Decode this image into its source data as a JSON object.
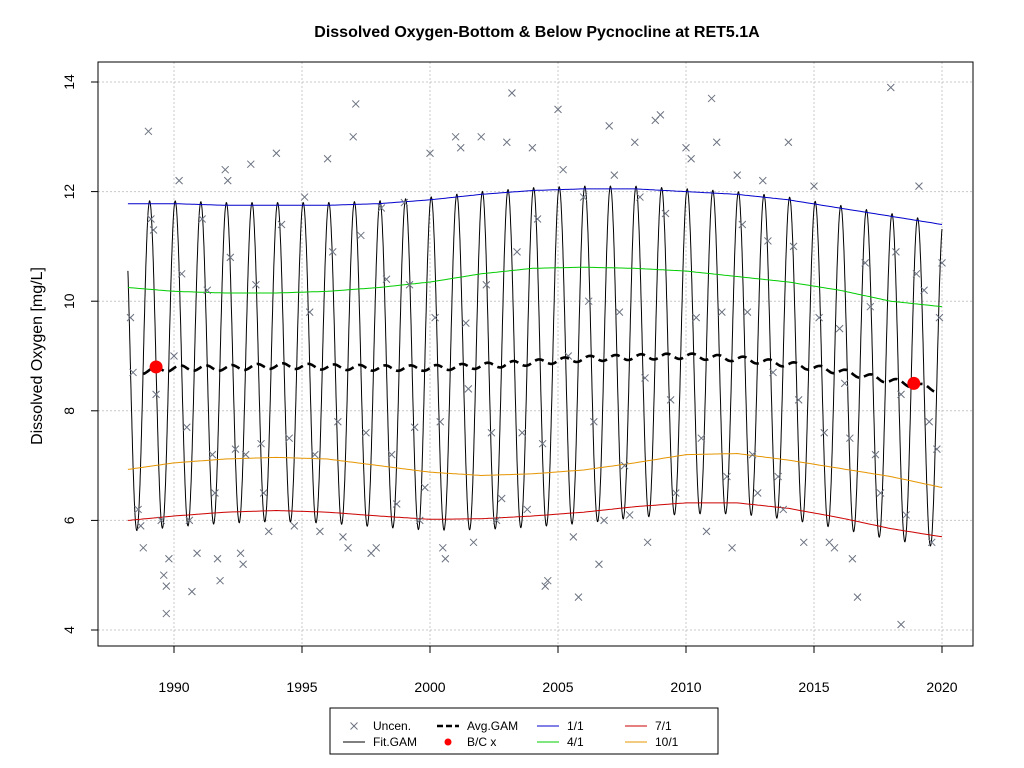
{
  "chart_data": {
    "type": "line",
    "title": "Dissolved Oxygen-Bottom & Below Pycnocline at RET5.1A",
    "xlabel": "",
    "ylabel": "Dissolved Oxygen [mg/L]",
    "xlim": [
      1988.2,
      2020.0
    ],
    "ylim": [
      4,
      14
    ],
    "x_ticks": [
      1990,
      1995,
      2000,
      2005,
      2010,
      2015,
      2020
    ],
    "x_tick_labels": [
      "1990",
      "1995",
      "2000",
      "2005",
      "2010",
      "2015",
      "2020"
    ],
    "y_ticks": [
      4,
      6,
      8,
      10,
      12,
      14
    ],
    "y_tick_labels": [
      "4",
      "6",
      "8",
      "10",
      "12",
      "14"
    ],
    "grid": true,
    "legend_position": "bottom-center",
    "legend": [
      {
        "label": "Uncen.",
        "symbol": "x",
        "color": "#6b7280"
      },
      {
        "label": "Avg.GAM",
        "symbol": "dashed-line",
        "color": "#000000"
      },
      {
        "label": "1/1",
        "symbol": "line",
        "color": "#0000cc"
      },
      {
        "label": "7/1",
        "symbol": "line",
        "color": "#cc0000"
      },
      {
        "label": "Fit.GAM",
        "symbol": "line",
        "color": "#000000"
      },
      {
        "label": "B/C x",
        "symbol": "dot",
        "color": "#ff0000"
      },
      {
        "label": "4/1",
        "symbol": "line",
        "color": "#00cc00"
      },
      {
        "label": "10/1",
        "symbol": "line",
        "color": "#e69500"
      }
    ],
    "series": [
      {
        "name": "1/1",
        "color": "#0000cc",
        "x": [
          1988.2,
          1990,
          1992,
          1994,
          1996,
          1998,
          2000,
          2002,
          2004,
          2006,
          2008,
          2010,
          2012,
          2014,
          2016,
          2018,
          2020
        ],
        "values": [
          11.78,
          11.78,
          11.75,
          11.75,
          11.75,
          11.78,
          11.85,
          11.95,
          12.02,
          12.05,
          12.05,
          12.0,
          11.95,
          11.85,
          11.7,
          11.55,
          11.4
        ]
      },
      {
        "name": "4/1",
        "color": "#00cc00",
        "x": [
          1988.2,
          1990,
          1992,
          1994,
          1996,
          1998,
          2000,
          2002,
          2004,
          2006,
          2008,
          2010,
          2012,
          2014,
          2016,
          2018,
          2020
        ],
        "values": [
          10.25,
          10.18,
          10.15,
          10.15,
          10.18,
          10.25,
          10.35,
          10.5,
          10.6,
          10.62,
          10.6,
          10.55,
          10.45,
          10.35,
          10.2,
          10.0,
          9.9
        ]
      },
      {
        "name": "10/1",
        "color": "#e69500",
        "x": [
          1988.2,
          1990,
          1992,
          1994,
          1996,
          1998,
          2000,
          2002,
          2004,
          2006,
          2008,
          2010,
          2012,
          2014,
          2016,
          2018,
          2020
        ],
        "values": [
          6.93,
          7.05,
          7.12,
          7.15,
          7.12,
          7.0,
          6.88,
          6.82,
          6.85,
          6.92,
          7.05,
          7.2,
          7.22,
          7.1,
          6.95,
          6.8,
          6.6
        ]
      },
      {
        "name": "7/1",
        "color": "#cc0000",
        "x": [
          1988.2,
          1990,
          1992,
          1994,
          1996,
          1998,
          2000,
          2002,
          2004,
          2006,
          2008,
          2010,
          2012,
          2014,
          2016,
          2018,
          2020
        ],
        "values": [
          6.0,
          6.08,
          6.15,
          6.18,
          6.15,
          6.08,
          6.02,
          6.03,
          6.08,
          6.15,
          6.25,
          6.32,
          6.32,
          6.22,
          6.05,
          5.85,
          5.7
        ]
      },
      {
        "name": "Avg.GAM",
        "color": "#000000",
        "x": [
          1988.8,
          1990,
          1992,
          1994,
          1996,
          1998,
          2000,
          2002,
          2004,
          2006,
          2008,
          2010,
          2012,
          2014,
          2016,
          2018,
          2019.7
        ],
        "values": [
          8.72,
          8.78,
          8.78,
          8.82,
          8.8,
          8.78,
          8.78,
          8.82,
          8.88,
          8.95,
          8.98,
          9.0,
          8.95,
          8.85,
          8.72,
          8.55,
          8.4
        ]
      },
      {
        "name": "Fit.GAM",
        "color": "#000000",
        "x_range": [
          1988.2,
          2020.0
        ],
        "amplitude_ref": "upper 1/1, lower 7/1",
        "period_years": 1
      }
    ],
    "bc_points": [
      {
        "x": 1989.3,
        "y": 8.8
      },
      {
        "x": 2018.9,
        "y": 8.5
      }
    ],
    "observations": [
      [
        1988.3,
        9.7
      ],
      [
        1988.4,
        8.7
      ],
      [
        1988.6,
        6.2
      ],
      [
        1988.7,
        5.9
      ],
      [
        1988.8,
        5.5
      ],
      [
        1989.0,
        13.1
      ],
      [
        1989.1,
        11.5
      ],
      [
        1989.2,
        11.3
      ],
      [
        1989.3,
        8.3
      ],
      [
        1989.5,
        6.0
      ],
      [
        1989.6,
        5.0
      ],
      [
        1989.7,
        4.8
      ],
      [
        1989.8,
        5.3
      ],
      [
        1989.7,
        4.3
      ],
      [
        1990.0,
        9.0
      ],
      [
        1990.2,
        12.2
      ],
      [
        1990.3,
        10.5
      ],
      [
        1990.5,
        7.7
      ],
      [
        1990.6,
        6.0
      ],
      [
        1990.7,
        4.7
      ],
      [
        1990.9,
        5.4
      ],
      [
        1991.1,
        11.5
      ],
      [
        1991.3,
        10.2
      ],
      [
        1991.5,
        7.2
      ],
      [
        1991.6,
        6.5
      ],
      [
        1991.7,
        5.3
      ],
      [
        1991.8,
        4.9
      ],
      [
        1992.0,
        12.4
      ],
      [
        1992.1,
        12.2
      ],
      [
        1992.2,
        10.8
      ],
      [
        1992.4,
        7.3
      ],
      [
        1992.6,
        5.4
      ],
      [
        1992.7,
        5.2
      ],
      [
        1992.8,
        7.2
      ],
      [
        1993.0,
        12.5
      ],
      [
        1993.2,
        10.3
      ],
      [
        1993.4,
        7.4
      ],
      [
        1993.5,
        6.5
      ],
      [
        1993.7,
        5.8
      ],
      [
        1994.0,
        12.7
      ],
      [
        1994.2,
        11.4
      ],
      [
        1994.5,
        7.5
      ],
      [
        1994.7,
        5.9
      ],
      [
        1995.1,
        11.9
      ],
      [
        1995.3,
        9.8
      ],
      [
        1995.5,
        7.2
      ],
      [
        1995.7,
        5.8
      ],
      [
        1996.0,
        12.6
      ],
      [
        1996.2,
        10.9
      ],
      [
        1996.4,
        7.8
      ],
      [
        1996.6,
        5.7
      ],
      [
        1996.8,
        5.5
      ],
      [
        1997.0,
        13.0
      ],
      [
        1997.1,
        13.6
      ],
      [
        1997.3,
        11.2
      ],
      [
        1997.5,
        7.6
      ],
      [
        1997.7,
        5.4
      ],
      [
        1997.9,
        5.5
      ],
      [
        1998.1,
        11.7
      ],
      [
        1998.3,
        10.4
      ],
      [
        1998.5,
        7.2
      ],
      [
        1998.7,
        6.3
      ],
      [
        1999.0,
        11.8
      ],
      [
        1999.2,
        10.3
      ],
      [
        1999.4,
        7.7
      ],
      [
        1999.6,
        6.0
      ],
      [
        1999.8,
        6.6
      ],
      [
        2000.0,
        12.7
      ],
      [
        2000.2,
        9.7
      ],
      [
        2000.4,
        7.8
      ],
      [
        2000.5,
        5.5
      ],
      [
        2000.6,
        5.3
      ],
      [
        2001.0,
        13.0
      ],
      [
        2001.2,
        12.8
      ],
      [
        2001.4,
        9.6
      ],
      [
        2001.5,
        8.4
      ],
      [
        2001.7,
        5.6
      ],
      [
        2002.0,
        13.0
      ],
      [
        2002.2,
        10.3
      ],
      [
        2002.4,
        7.6
      ],
      [
        2002.6,
        6.0
      ],
      [
        2002.8,
        6.4
      ],
      [
        2003.0,
        12.9
      ],
      [
        2003.2,
        13.8
      ],
      [
        2003.4,
        10.9
      ],
      [
        2003.6,
        7.6
      ],
      [
        2003.8,
        6.2
      ],
      [
        2004.0,
        12.8
      ],
      [
        2004.2,
        11.5
      ],
      [
        2004.4,
        7.4
      ],
      [
        2004.5,
        4.8
      ],
      [
        2004.6,
        4.9
      ],
      [
        2005.0,
        13.5
      ],
      [
        2005.2,
        12.4
      ],
      [
        2005.4,
        9.0
      ],
      [
        2005.6,
        5.7
      ],
      [
        2005.8,
        4.6
      ],
      [
        2006.0,
        11.9
      ],
      [
        2006.2,
        10.0
      ],
      [
        2006.4,
        7.8
      ],
      [
        2006.6,
        5.2
      ],
      [
        2006.8,
        6.0
      ],
      [
        2007.0,
        13.2
      ],
      [
        2007.2,
        12.3
      ],
      [
        2007.4,
        9.8
      ],
      [
        2007.6,
        7.0
      ],
      [
        2007.8,
        6.1
      ],
      [
        2008.0,
        12.9
      ],
      [
        2008.2,
        11.9
      ],
      [
        2008.4,
        8.6
      ],
      [
        2008.5,
        5.6
      ],
      [
        2008.8,
        13.3
      ],
      [
        2009.0,
        13.4
      ],
      [
        2009.2,
        11.6
      ],
      [
        2009.4,
        8.2
      ],
      [
        2009.6,
        6.5
      ],
      [
        2010.0,
        12.8
      ],
      [
        2010.2,
        12.6
      ],
      [
        2010.4,
        9.7
      ],
      [
        2010.6,
        7.5
      ],
      [
        2010.8,
        5.8
      ],
      [
        2011.0,
        13.7
      ],
      [
        2011.2,
        12.9
      ],
      [
        2011.4,
        9.8
      ],
      [
        2011.6,
        6.8
      ],
      [
        2011.8,
        5.5
      ],
      [
        2012.0,
        12.3
      ],
      [
        2012.2,
        11.4
      ],
      [
        2012.4,
        9.8
      ],
      [
        2012.6,
        7.2
      ],
      [
        2012.8,
        6.5
      ],
      [
        2013.0,
        12.2
      ],
      [
        2013.2,
        11.1
      ],
      [
        2013.4,
        8.7
      ],
      [
        2013.6,
        6.8
      ],
      [
        2013.8,
        6.2
      ],
      [
        2014.0,
        12.9
      ],
      [
        2014.2,
        11.0
      ],
      [
        2014.4,
        8.2
      ],
      [
        2014.6,
        5.6
      ],
      [
        2015.0,
        12.1
      ],
      [
        2015.2,
        9.7
      ],
      [
        2015.4,
        7.6
      ],
      [
        2015.6,
        5.6
      ],
      [
        2015.8,
        5.5
      ],
      [
        2016.0,
        9.5
      ],
      [
        2016.2,
        8.5
      ],
      [
        2016.4,
        7.5
      ],
      [
        2016.5,
        5.3
      ],
      [
        2016.7,
        4.6
      ],
      [
        2017.0,
        10.7
      ],
      [
        2017.2,
        9.9
      ],
      [
        2017.4,
        7.2
      ],
      [
        2017.6,
        6.5
      ],
      [
        2018.0,
        13.9
      ],
      [
        2018.2,
        10.9
      ],
      [
        2018.4,
        8.3
      ],
      [
        2018.6,
        6.1
      ],
      [
        2018.4,
        4.1
      ],
      [
        2019.0,
        10.5
      ],
      [
        2019.1,
        12.1
      ],
      [
        2019.3,
        10.2
      ],
      [
        2019.5,
        7.8
      ],
      [
        2019.6,
        5.6
      ],
      [
        2019.8,
        7.3
      ],
      [
        2019.9,
        9.7
      ],
      [
        2020.0,
        10.7
      ]
    ]
  }
}
